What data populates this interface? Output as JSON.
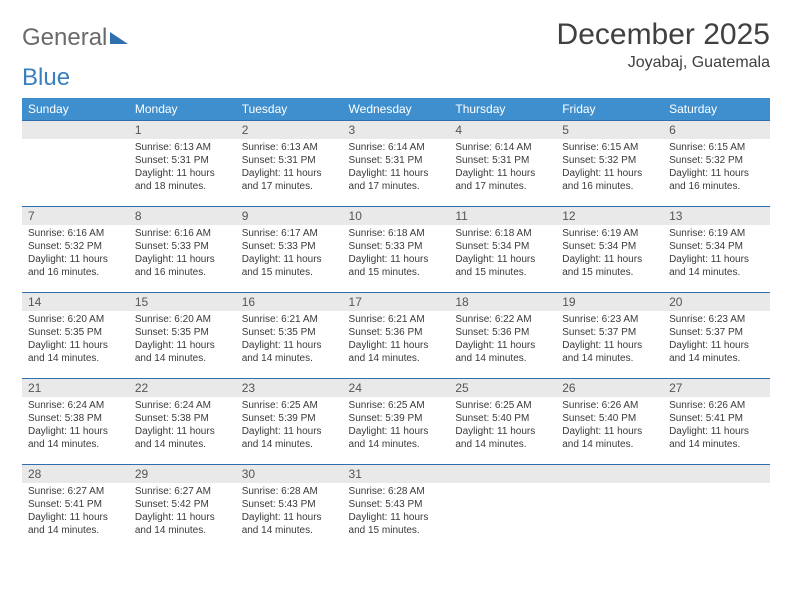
{
  "brand": {
    "word1": "General",
    "word2": "Blue"
  },
  "title": "December 2025",
  "location": "Joyabaj, Guatemala",
  "colors": {
    "header_bg": "#3f8fce",
    "header_text": "#ffffff",
    "daynum_bg": "#e9e9e9",
    "row_border": "#2f6fae",
    "text": "#3a3a3a",
    "background": "#ffffff"
  },
  "typography": {
    "title_fontsize": 30,
    "subtitle_fontsize": 16,
    "header_fontsize": 12,
    "cell_fontsize": 10
  },
  "weekdays": [
    "Sunday",
    "Monday",
    "Tuesday",
    "Wednesday",
    "Thursday",
    "Friday",
    "Saturday"
  ],
  "grid": {
    "rows": 5,
    "cols": 7,
    "first_weekday_index": 1,
    "days_in_month": 31
  },
  "days": [
    {
      "n": 1,
      "sunrise": "6:13 AM",
      "sunset": "5:31 PM",
      "daylight": "11 hours and 18 minutes."
    },
    {
      "n": 2,
      "sunrise": "6:13 AM",
      "sunset": "5:31 PM",
      "daylight": "11 hours and 17 minutes."
    },
    {
      "n": 3,
      "sunrise": "6:14 AM",
      "sunset": "5:31 PM",
      "daylight": "11 hours and 17 minutes."
    },
    {
      "n": 4,
      "sunrise": "6:14 AM",
      "sunset": "5:31 PM",
      "daylight": "11 hours and 17 minutes."
    },
    {
      "n": 5,
      "sunrise": "6:15 AM",
      "sunset": "5:32 PM",
      "daylight": "11 hours and 16 minutes."
    },
    {
      "n": 6,
      "sunrise": "6:15 AM",
      "sunset": "5:32 PM",
      "daylight": "11 hours and 16 minutes."
    },
    {
      "n": 7,
      "sunrise": "6:16 AM",
      "sunset": "5:32 PM",
      "daylight": "11 hours and 16 minutes."
    },
    {
      "n": 8,
      "sunrise": "6:16 AM",
      "sunset": "5:33 PM",
      "daylight": "11 hours and 16 minutes."
    },
    {
      "n": 9,
      "sunrise": "6:17 AM",
      "sunset": "5:33 PM",
      "daylight": "11 hours and 15 minutes."
    },
    {
      "n": 10,
      "sunrise": "6:18 AM",
      "sunset": "5:33 PM",
      "daylight": "11 hours and 15 minutes."
    },
    {
      "n": 11,
      "sunrise": "6:18 AM",
      "sunset": "5:34 PM",
      "daylight": "11 hours and 15 minutes."
    },
    {
      "n": 12,
      "sunrise": "6:19 AM",
      "sunset": "5:34 PM",
      "daylight": "11 hours and 15 minutes."
    },
    {
      "n": 13,
      "sunrise": "6:19 AM",
      "sunset": "5:34 PM",
      "daylight": "11 hours and 14 minutes."
    },
    {
      "n": 14,
      "sunrise": "6:20 AM",
      "sunset": "5:35 PM",
      "daylight": "11 hours and 14 minutes."
    },
    {
      "n": 15,
      "sunrise": "6:20 AM",
      "sunset": "5:35 PM",
      "daylight": "11 hours and 14 minutes."
    },
    {
      "n": 16,
      "sunrise": "6:21 AM",
      "sunset": "5:35 PM",
      "daylight": "11 hours and 14 minutes."
    },
    {
      "n": 17,
      "sunrise": "6:21 AM",
      "sunset": "5:36 PM",
      "daylight": "11 hours and 14 minutes."
    },
    {
      "n": 18,
      "sunrise": "6:22 AM",
      "sunset": "5:36 PM",
      "daylight": "11 hours and 14 minutes."
    },
    {
      "n": 19,
      "sunrise": "6:23 AM",
      "sunset": "5:37 PM",
      "daylight": "11 hours and 14 minutes."
    },
    {
      "n": 20,
      "sunrise": "6:23 AM",
      "sunset": "5:37 PM",
      "daylight": "11 hours and 14 minutes."
    },
    {
      "n": 21,
      "sunrise": "6:24 AM",
      "sunset": "5:38 PM",
      "daylight": "11 hours and 14 minutes."
    },
    {
      "n": 22,
      "sunrise": "6:24 AM",
      "sunset": "5:38 PM",
      "daylight": "11 hours and 14 minutes."
    },
    {
      "n": 23,
      "sunrise": "6:25 AM",
      "sunset": "5:39 PM",
      "daylight": "11 hours and 14 minutes."
    },
    {
      "n": 24,
      "sunrise": "6:25 AM",
      "sunset": "5:39 PM",
      "daylight": "11 hours and 14 minutes."
    },
    {
      "n": 25,
      "sunrise": "6:25 AM",
      "sunset": "5:40 PM",
      "daylight": "11 hours and 14 minutes."
    },
    {
      "n": 26,
      "sunrise": "6:26 AM",
      "sunset": "5:40 PM",
      "daylight": "11 hours and 14 minutes."
    },
    {
      "n": 27,
      "sunrise": "6:26 AM",
      "sunset": "5:41 PM",
      "daylight": "11 hours and 14 minutes."
    },
    {
      "n": 28,
      "sunrise": "6:27 AM",
      "sunset": "5:41 PM",
      "daylight": "11 hours and 14 minutes."
    },
    {
      "n": 29,
      "sunrise": "6:27 AM",
      "sunset": "5:42 PM",
      "daylight": "11 hours and 14 minutes."
    },
    {
      "n": 30,
      "sunrise": "6:28 AM",
      "sunset": "5:43 PM",
      "daylight": "11 hours and 14 minutes."
    },
    {
      "n": 31,
      "sunrise": "6:28 AM",
      "sunset": "5:43 PM",
      "daylight": "11 hours and 15 minutes."
    }
  ],
  "labels": {
    "sunrise": "Sunrise: ",
    "sunset": "Sunset: ",
    "daylight": "Daylight: "
  }
}
